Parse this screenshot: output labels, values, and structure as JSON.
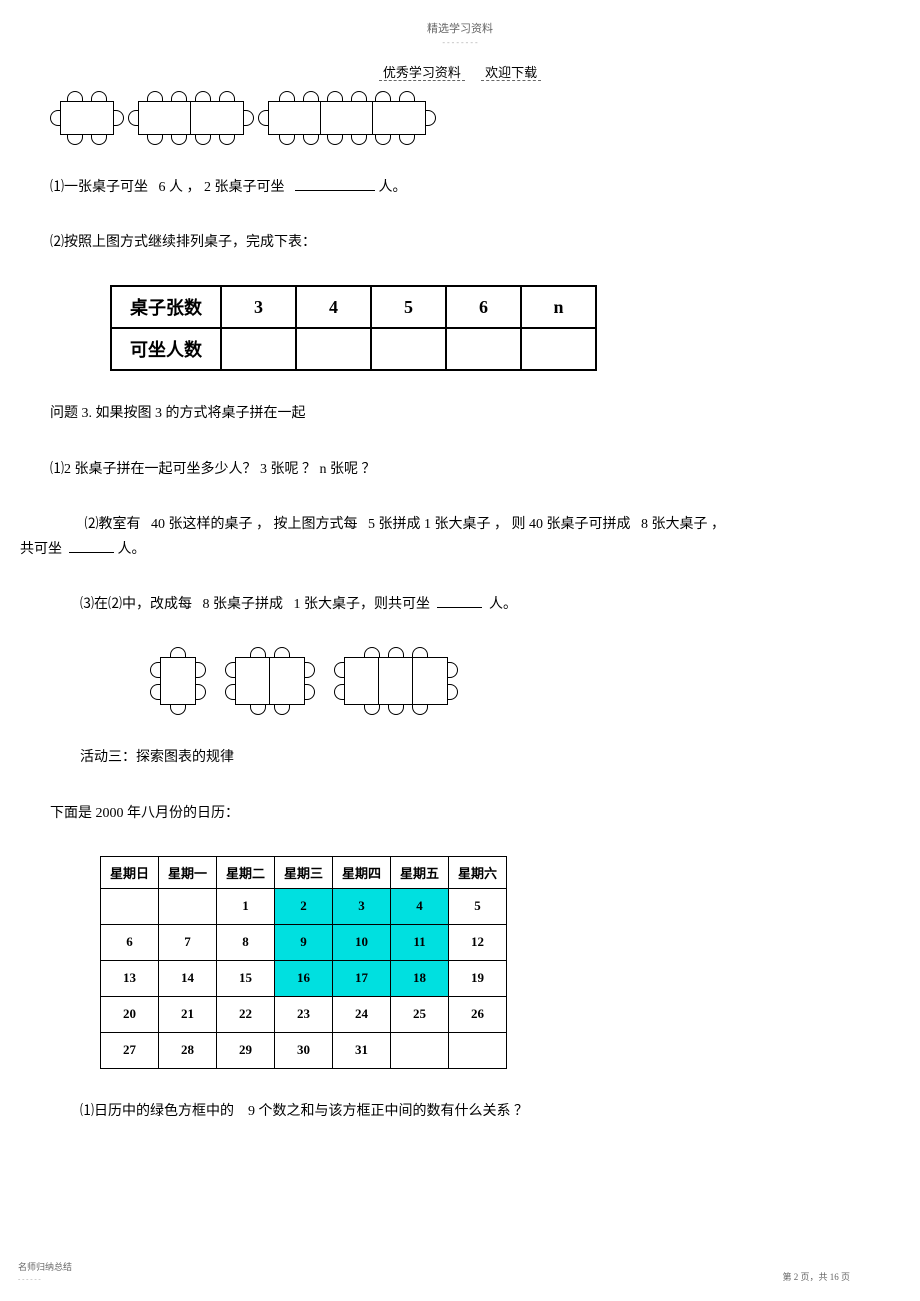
{
  "header": {
    "small": "精选学习资料",
    "main_left": "优秀学习资料",
    "main_right": "欢迎下载"
  },
  "q1": {
    "text_a": "⑴一张桌子可坐",
    "text_b": "6 人 ， 2 张桌子可坐",
    "text_c": "人。"
  },
  "q2": {
    "text": "⑵按照上图方式继续排列桌子，完成下表："
  },
  "table1": {
    "row1_label": "桌子张数",
    "row1_cells": [
      "3",
      "4",
      "5",
      "6",
      "n"
    ],
    "row2_label": "可坐人数",
    "row2_cells": [
      "",
      "",
      "",
      "",
      ""
    ]
  },
  "p3": {
    "title": "问题  3. 如果按图  3 的方式将桌子拼在一起",
    "q1": "⑴2  张桌子拼在一起可坐多少人？    3 张呢 ？ n 张呢 ？",
    "q2_a": "⑵教室有",
    "q2_b": "40  张这样的桌子 ，  按上图方式每",
    "q2_c": "5 张拼成  1 张大桌子 ，  则  40 张桌子可拼成",
    "q2_d": "8 张大桌子 ，",
    "q2_e": "共可坐",
    "q2_f": "人。",
    "q3_a": "⑶在⑵中，改成每",
    "q3_b": "8 张桌子拼成",
    "q3_c": "1 张大桌子，则共可坐",
    "q3_d": "人。"
  },
  "activity3": {
    "title": "活动三：探索图表的规律",
    "sub": "下面是  2000  年八月份的日历："
  },
  "calendar": {
    "headers": [
      "星期日",
      "星期一",
      "星期二",
      "星期三",
      "星期四",
      "星期五",
      "星期六"
    ],
    "rows": [
      [
        "",
        "",
        "1",
        "2",
        "3",
        "4",
        "5"
      ],
      [
        "6",
        "7",
        "8",
        "9",
        "10",
        "11",
        "12"
      ],
      [
        "13",
        "14",
        "15",
        "16",
        "17",
        "18",
        "19"
      ],
      [
        "20",
        "21",
        "22",
        "23",
        "24",
        "25",
        "26"
      ],
      [
        "27",
        "28",
        "29",
        "30",
        "31",
        "",
        ""
      ]
    ],
    "highlighted": [
      [
        0,
        3
      ],
      [
        0,
        4
      ],
      [
        0,
        5
      ],
      [
        1,
        3
      ],
      [
        1,
        4
      ],
      [
        1,
        5
      ],
      [
        2,
        3
      ],
      [
        2,
        4
      ],
      [
        2,
        5
      ]
    ]
  },
  "q_cal": {
    "text_a": "⑴日历中的绿色方框中的",
    "text_b": "9 个数之和与该方框正中间的数有什么关系 ？"
  },
  "footer": {
    "left": "名师归纳总结",
    "right": "第 2 页，共 16 页"
  },
  "colors": {
    "highlight": "#00E0E0"
  }
}
